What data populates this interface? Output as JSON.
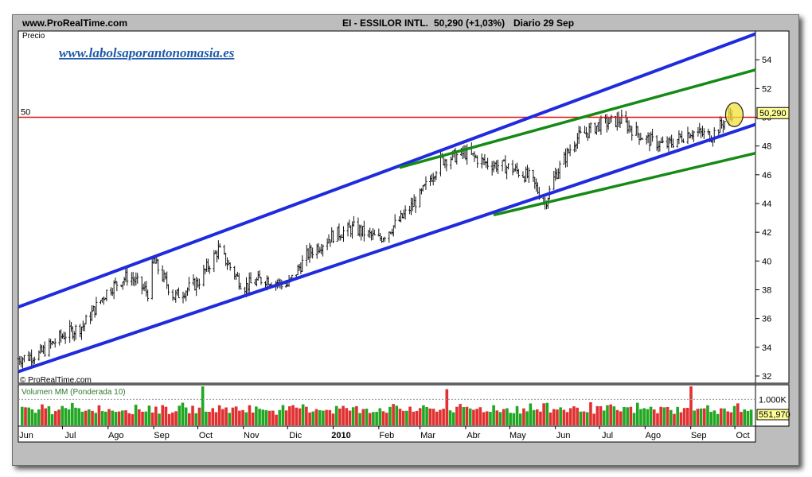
{
  "header": {
    "site": "www.ProRealTime.com",
    "instrument": "EI - ESSILOR INTL.",
    "last": "50,290 (+1,03%)",
    "period": "Diario  29 Sep"
  },
  "watermark_url": "www.labolsaporantonomasia.es",
  "credit": "© ProRealTime.com",
  "colors": {
    "channel": "#1f2bdc",
    "trend": "#158a15",
    "resistance": "#e01010",
    "highlight": "#f2e23a",
    "label_bg": "#ffff99",
    "vol_up": "#22a722",
    "vol_down": "#e03030"
  },
  "chart_data": [
    {
      "type": "line",
      "title": "EI - ESSILOR INTL.",
      "ylabel": "Precio",
      "ylim": [
        31.5,
        56
      ],
      "yticks": [
        32,
        34,
        36,
        38,
        40,
        42,
        44,
        46,
        48,
        50,
        52,
        54
      ],
      "xticks": [
        "Jun",
        "Jul",
        "Ago",
        "Sep",
        "Oct",
        "Nov",
        "Dic",
        "2010",
        "Feb",
        "Mar",
        "Abr",
        "May",
        "Jun",
        "Jul",
        "Ago",
        "Sep",
        "Oct"
      ],
      "x_range": [
        "2009-06-01",
        "2010-10-01"
      ],
      "series": [
        {
          "x": [
            "2009-06-01",
            "2009-06-15",
            "2009-07-01",
            "2009-07-15",
            "2009-08-01",
            "2009-08-15",
            "2009-08-28",
            "2009-09-01",
            "2009-09-15",
            "2009-10-01",
            "2009-10-15",
            "2009-11-01",
            "2009-11-15",
            "2009-12-01",
            "2009-12-15",
            "2010-01-01",
            "2010-01-15",
            "2010-02-01",
            "2010-02-15",
            "2010-03-01",
            "2010-03-15",
            "2010-04-01",
            "2010-04-15",
            "2010-05-01",
            "2010-05-15",
            "2010-05-25",
            "2010-06-01",
            "2010-06-15",
            "2010-07-01",
            "2010-07-15",
            "2010-08-01",
            "2010-08-15",
            "2010-09-01",
            "2010-09-15",
            "2010-09-29"
          ],
          "values": [
            33.2,
            33.5,
            34.8,
            35.5,
            38.0,
            39.0,
            37.8,
            40.0,
            37.5,
            38.5,
            40.8,
            38.2,
            38.8,
            38.3,
            40.5,
            41.8,
            42.3,
            41.5,
            42.8,
            44.5,
            47.0,
            47.5,
            46.8,
            46.5,
            45.8,
            44.0,
            46.0,
            48.5,
            49.5,
            49.8,
            48.5,
            48.0,
            49.0,
            48.7,
            50.29
          ]
        }
      ],
      "resistance": {
        "value": 50,
        "label": "50"
      },
      "last_value_label": "50,290",
      "channel_lines": [
        {
          "name": "channel-top",
          "from": {
            "x": "2009-06-01",
            "y": 36.8
          },
          "to": {
            "x": "2010-10-15",
            "y": 55.8
          }
        },
        {
          "name": "channel-bottom",
          "from": {
            "x": "2009-06-01",
            "y": 32.3
          },
          "to": {
            "x": "2010-10-15",
            "y": 49.5
          }
        }
      ],
      "trend_lines": [
        {
          "name": "trend-top",
          "from": {
            "x": "2010-02-15",
            "y": 46.5
          },
          "to": {
            "x": "2010-10-15",
            "y": 53.3
          }
        },
        {
          "name": "trend-bottom",
          "from": {
            "x": "2010-04-20",
            "y": 43.2
          },
          "to": {
            "x": "2010-10-15",
            "y": 47.5
          }
        }
      ]
    },
    {
      "type": "bar",
      "title": "Volumen MM (Ponderada 10)",
      "ytick_label": "1.000K",
      "last_value_label": "551,970",
      "ylim": [
        0,
        1500
      ],
      "series": [
        {
          "name": "Volumen",
          "values_note_free": true,
          "values": [
            620,
            580,
            700,
            540,
            610,
            660,
            720,
            590,
            640,
            560,
            680,
            750,
            600,
            630,
            570,
            710,
            660,
            590,
            620,
            640,
            560,
            690,
            610,
            650,
            720,
            580,
            600,
            640,
            570,
            630,
            690,
            600,
            620,
            560,
            640,
            660,
            600,
            590,
            720,
            610,
            650,
            580,
            630,
            690,
            560,
            600,
            640,
            620,
            700,
            570,
            610,
            650,
            590,
            630,
            1400,
            700,
            620,
            580,
            660,
            640,
            600,
            690,
            570,
            620,
            650,
            610,
            590,
            640,
            700,
            560,
            620,
            600,
            650
          ]
        }
      ]
    }
  ],
  "x_labels": [
    "Jun",
    "Jul",
    "Ago",
    "Sep",
    "Oct",
    "Nov",
    "Dic",
    "2010",
    "Feb",
    "Mar",
    "Abr",
    "May",
    "Jun",
    "Jul",
    "Ago",
    "Sep",
    "Oct"
  ],
  "y_labels": [
    "54",
    "52",
    "50",
    "48",
    "46",
    "44",
    "42",
    "40",
    "38",
    "36",
    "34",
    "32"
  ]
}
